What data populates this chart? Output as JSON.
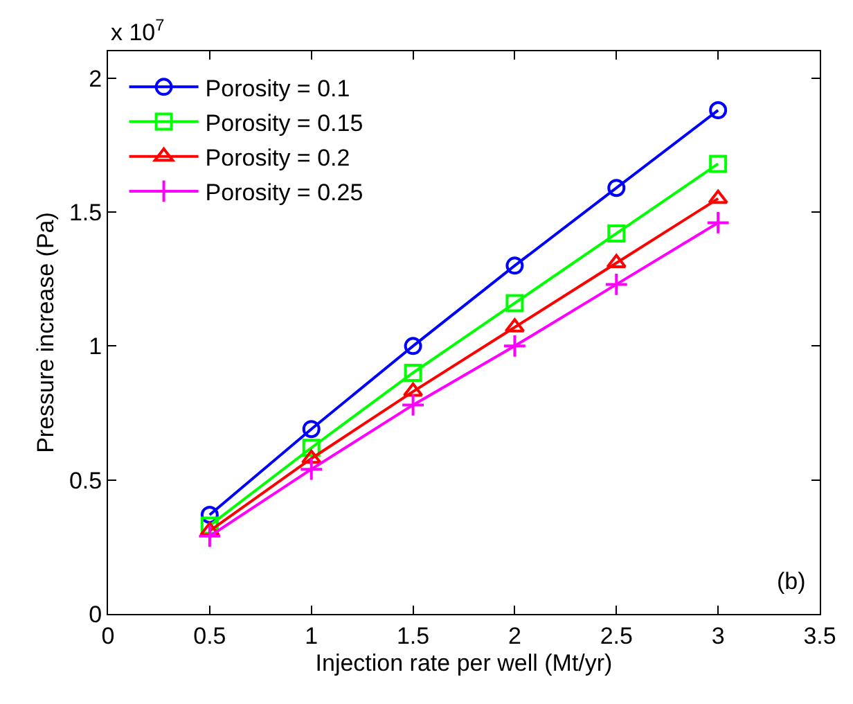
{
  "chart_data": {
    "type": "line",
    "xlabel": "Injection rate per well (Mt/yr)",
    "ylabel": "Pressure increase (Pa)",
    "x": [
      0.5,
      1,
      1.5,
      2,
      2.5,
      3
    ],
    "series": [
      {
        "name": "Porosity = 0.1",
        "color": "#0000ff",
        "marker": "circle",
        "values": [
          0.37,
          0.69,
          1.0,
          1.3,
          1.59,
          1.88
        ]
      },
      {
        "name": "Porosity = 0.15",
        "color": "#00ff00",
        "marker": "square",
        "values": [
          0.33,
          0.62,
          0.9,
          1.16,
          1.42,
          1.68
        ]
      },
      {
        "name": "Porosity = 0.2",
        "color": "#ff0000",
        "marker": "triangle",
        "values": [
          0.31,
          0.58,
          0.83,
          1.07,
          1.31,
          1.55
        ]
      },
      {
        "name": "Porosity = 0.25",
        "color": "#ff00ff",
        "marker": "cross",
        "values": [
          0.29,
          0.54,
          0.78,
          1.0,
          1.23,
          1.46
        ]
      }
    ],
    "xlim": [
      0,
      3.5
    ],
    "xticks": [
      0,
      0.5,
      1,
      1.5,
      2,
      2.5,
      3,
      3.5
    ],
    "ylim": [
      0,
      2.1
    ],
    "yticks": [
      0,
      0.5,
      1,
      1.5,
      2
    ],
    "annotations": [
      "x 10$^{7}$",
      "(b)"
    ],
    "legend": "top left",
    "line_style": "solid"
  }
}
